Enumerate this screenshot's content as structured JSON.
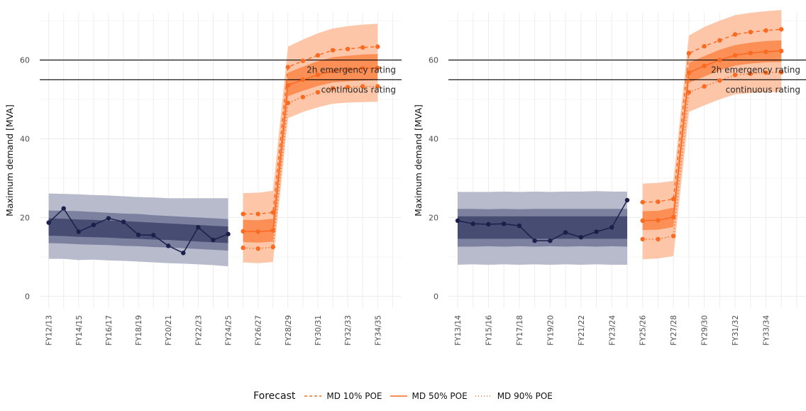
{
  "chart_data": [
    {
      "type": "line",
      "title": "",
      "xlabel": "",
      "ylabel": "Maximum demand [MVA]",
      "ylim": [
        -3,
        72
      ],
      "y_ticks": [
        0,
        20,
        40,
        60
      ],
      "x_tick_labels": [
        "FY12/13",
        "FY14/15",
        "FY16/17",
        "FY18/19",
        "FY20/21",
        "FY22/23",
        "FY24/25",
        "FY26/27",
        "FY28/29",
        "FY30/31",
        "FY32/33",
        "FY34/35"
      ],
      "grid": true,
      "reference_lines": [
        {
          "label": "2h emergency rating",
          "value": 60
        },
        {
          "label": "continuous rating",
          "value": 55
        }
      ],
      "historical": {
        "x": [
          "FY12/13",
          "FY13/14",
          "FY14/15",
          "FY15/16",
          "FY16/17",
          "FY17/18",
          "FY18/19",
          "FY19/20",
          "FY20/21",
          "FY21/22",
          "FY22/23",
          "FY23/24",
          "FY24/25"
        ],
        "values": [
          18.7,
          22.3,
          16.4,
          18.1,
          19.8,
          18.9,
          15.6,
          15.5,
          12.8,
          11.0,
          17.5,
          14.3,
          15.8
        ],
        "band_outer_low": [
          9.5,
          9.5,
          9.2,
          9.3,
          9.1,
          9.0,
          8.8,
          8.6,
          8.4,
          8.3,
          8.1,
          7.9,
          7.6
        ],
        "band_outer_high": [
          26.1,
          26.0,
          25.9,
          25.7,
          25.6,
          25.4,
          25.2,
          25.1,
          24.9,
          24.9,
          24.9,
          24.9,
          24.9
        ],
        "band_mid_low": [
          13.5,
          13.4,
          13.2,
          13.1,
          13.0,
          12.8,
          12.7,
          12.5,
          12.4,
          12.2,
          12.0,
          11.8,
          11.6
        ],
        "band_mid_high": [
          21.8,
          21.7,
          21.6,
          21.4,
          21.2,
          21.0,
          20.9,
          20.6,
          20.4,
          20.2,
          20.0,
          19.8,
          19.6
        ],
        "band_inner_low": [
          15.4,
          15.3,
          15.1,
          15.0,
          14.9,
          14.7,
          14.6,
          14.4,
          14.3,
          14.1,
          13.9,
          13.7,
          13.5
        ],
        "band_inner_high": [
          19.8,
          19.7,
          19.5,
          19.4,
          19.2,
          19.1,
          18.9,
          18.7,
          18.5,
          18.3,
          18.1,
          17.9,
          17.7
        ]
      },
      "forecast": {
        "x": [
          "FY25/26",
          "FY26/27",
          "FY27/28",
          "FY28/29",
          "FY29/30",
          "FY30/31",
          "FY31/32",
          "FY32/33",
          "FY33/34",
          "FY34/35"
        ],
        "series": [
          {
            "name": "MD 10% POE",
            "values": [
              20.9,
              20.9,
              21.3,
              58.2,
              59.8,
              61.2,
              62.5,
              62.8,
              63.2,
              63.4
            ]
          },
          {
            "name": "MD 50% POE",
            "values": [
              16.5,
              16.4,
              16.7,
              53.6,
              55.0,
              56.2,
              57.2,
              57.6,
              57.9,
              58.0
            ]
          },
          {
            "name": "MD 90% POE",
            "values": [
              12.3,
              12.1,
              12.5,
              49.1,
              50.6,
              51.8,
              52.8,
              53.1,
              53.3,
              53.3
            ]
          }
        ],
        "band_outer_low": [
          8.6,
          8.4,
          8.7,
          45.2,
          46.8,
          48.0,
          48.9,
          49.2,
          49.3,
          49.4
        ],
        "band_outer_high": [
          26.2,
          26.3,
          26.8,
          63.4,
          65.2,
          66.8,
          68.0,
          68.6,
          69.0,
          69.2
        ],
        "band_inner_low": [
          13.8,
          13.6,
          13.9,
          50.8,
          52.2,
          53.4,
          54.3,
          54.6,
          54.8,
          54.9
        ],
        "band_inner_high": [
          19.4,
          19.3,
          19.7,
          56.8,
          58.3,
          59.7,
          60.7,
          61.1,
          61.4,
          61.5
        ]
      }
    },
    {
      "type": "line",
      "title": "",
      "xlabel": "",
      "ylabel": "Maximum demand [MVA]",
      "ylim": [
        -3,
        72
      ],
      "y_ticks": [
        0,
        20,
        40,
        60
      ],
      "x_tick_labels": [
        "FY13/14",
        "FY15/16",
        "FY17/18",
        "FY19/20",
        "FY21/22",
        "FY23/24",
        "FY25/26",
        "FY27/28",
        "FY29/30",
        "FY31/32",
        "FY33/34"
      ],
      "grid": true,
      "reference_lines": [
        {
          "label": "2h emergency rating",
          "value": 60
        },
        {
          "label": "continuous rating",
          "value": 55
        }
      ],
      "historical": {
        "x": [
          "FY13/14",
          "FY14/15",
          "FY15/16",
          "FY16/17",
          "FY17/18",
          "FY18/19",
          "FY19/20",
          "FY20/21",
          "FY21/22",
          "FY22/23",
          "FY23/24",
          "FY24/25"
        ],
        "values": [
          19.2,
          18.4,
          18.3,
          18.4,
          17.9,
          14.1,
          14.1,
          16.2,
          15.0,
          16.4,
          17.5,
          24.4
        ],
        "band_outer_low": [
          8.0,
          8.1,
          8.0,
          8.1,
          8.0,
          8.1,
          8.0,
          8.1,
          8.0,
          8.1,
          8.0,
          8.0
        ],
        "band_outer_high": [
          26.5,
          26.5,
          26.5,
          26.6,
          26.5,
          26.6,
          26.5,
          26.6,
          26.6,
          26.7,
          26.6,
          26.6
        ],
        "band_mid_low": [
          12.6,
          12.6,
          12.7,
          12.6,
          12.7,
          12.6,
          12.7,
          12.6,
          12.7,
          12.6,
          12.7,
          12.6
        ],
        "band_mid_high": [
          22.2,
          22.2,
          22.1,
          22.2,
          22.1,
          22.2,
          22.2,
          22.2,
          22.2,
          22.2,
          22.2,
          22.2
        ],
        "band_inner_low": [
          14.6,
          14.6,
          14.6,
          14.6,
          14.6,
          14.6,
          14.6,
          14.6,
          14.6,
          14.6,
          14.6,
          14.6
        ],
        "band_inner_high": [
          20.3,
          20.3,
          20.3,
          20.3,
          20.3,
          20.3,
          20.3,
          20.3,
          20.3,
          20.3,
          20.3,
          20.3
        ]
      },
      "forecast": {
        "x": [
          "FY25/26",
          "FY26/27",
          "FY27/28",
          "FY28/29",
          "FY29/30",
          "FY30/31",
          "FY31/32",
          "FY32/33",
          "FY33/34",
          "FY34/35"
        ],
        "series": [
          {
            "name": "MD 10% POE",
            "values": [
              23.9,
              24.0,
              24.7,
              61.7,
              63.5,
              65.0,
              66.5,
              67.1,
              67.5,
              67.8
            ]
          },
          {
            "name": "MD 50% POE",
            "values": [
              19.2,
              19.3,
              20.1,
              56.8,
              58.5,
              60.0,
              61.2,
              61.8,
              62.1,
              62.3
            ]
          },
          {
            "name": "MD 90% POE",
            "values": [
              14.5,
              14.5,
              15.3,
              51.8,
              53.3,
              54.8,
              56.2,
              56.5,
              56.8,
              56.9
            ]
          }
        ],
        "band_outer_low": [
          9.4,
          9.6,
          10.2,
          46.8,
          48.5,
          50.0,
          51.3,
          51.6,
          51.8,
          51.9
        ],
        "band_outer_high": [
          28.6,
          28.8,
          29.3,
          66.2,
          68.4,
          70.0,
          71.4,
          72.0,
          72.4,
          72.7
        ],
        "band_inner_low": [
          16.8,
          16.9,
          17.6,
          54.2,
          55.8,
          57.4,
          58.6,
          59.1,
          59.4,
          59.5
        ],
        "band_inner_high": [
          21.6,
          21.7,
          22.5,
          59.3,
          61.0,
          62.6,
          63.8,
          64.4,
          64.8,
          65.0
        ]
      }
    }
  ],
  "legend": {
    "title": "Forecast",
    "items": [
      "MD 10% POE",
      "MD 50% POE",
      "MD 90% POE"
    ]
  },
  "colors": {
    "historical": "#1b1f4b",
    "forecast": "#fb6a21",
    "band_outer_historical": "#b8bbcc",
    "band_mid_historical": "#7c819f",
    "band_inner_historical": "#474c72",
    "band_outer_forecast": "#fdc6a8",
    "band_inner_forecast": "#fb8f56",
    "grid": "#ebebeb",
    "reference": "#000000"
  }
}
